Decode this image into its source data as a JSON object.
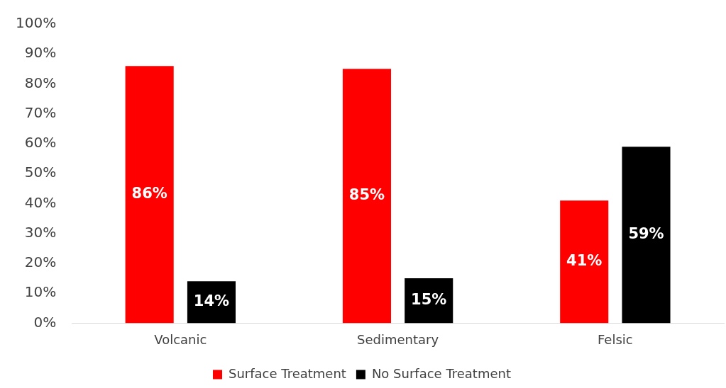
{
  "chart_data": {
    "type": "bar",
    "categories": [
      "Volcanic",
      "Sedimentary",
      "Felsic"
    ],
    "series": [
      {
        "name": "Surface Treatment",
        "color": "#ff0000",
        "values": [
          86,
          85,
          41
        ],
        "value_labels": [
          "86%",
          "85%",
          "41%"
        ]
      },
      {
        "name": "No Surface Treatment",
        "color": "#000000",
        "values": [
          14,
          15,
          59
        ],
        "value_labels": [
          "14%",
          "15%",
          "59%"
        ]
      }
    ],
    "ylim": [
      0,
      100
    ],
    "yticks": [
      {
        "value": 0,
        "label": "0%"
      },
      {
        "value": 10,
        "label": "10%"
      },
      {
        "value": 20,
        "label": "20%"
      },
      {
        "value": 30,
        "label": "30%"
      },
      {
        "value": 40,
        "label": "40%"
      },
      {
        "value": 50,
        "label": "50%"
      },
      {
        "value": 60,
        "label": "60%"
      },
      {
        "value": 70,
        "label": "70%"
      },
      {
        "value": 80,
        "label": "80%"
      },
      {
        "value": 90,
        "label": "90%"
      },
      {
        "value": 100,
        "label": "100%"
      }
    ],
    "grid": false,
    "legend": "bottom"
  }
}
